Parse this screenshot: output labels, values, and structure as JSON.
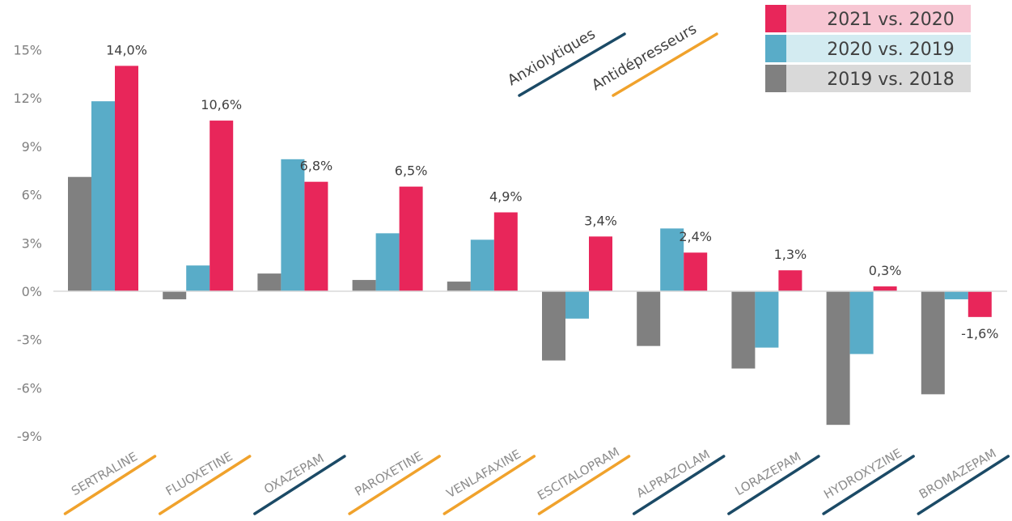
{
  "chart_data": {
    "type": "bar",
    "categories": [
      "SERTRALINE",
      "FLUOXETINE",
      "OXAZEPAM",
      "PAROXETINE",
      "VENLAFAXINE",
      "ESCITALOPRAM",
      "ALPRAZOLAM",
      "LORAZEPAM",
      "HYDROXYZINE",
      "BROMAZEPAM"
    ],
    "category_class": [
      "antidepressant",
      "antidepressant",
      "anxiolytic",
      "antidepressant",
      "antidepressant",
      "antidepressant",
      "anxiolytic",
      "anxiolytic",
      "anxiolytic",
      "anxiolytic"
    ],
    "series": [
      {
        "name": "2019 vs. 2018",
        "color": "#808080",
        "values": [
          7.1,
          -0.5,
          1.1,
          0.7,
          0.6,
          -4.3,
          -3.4,
          -4.8,
          -8.3,
          -6.4
        ]
      },
      {
        "name": "2020 vs. 2019",
        "color": "#59acc8",
        "values": [
          11.8,
          1.6,
          8.2,
          3.6,
          3.2,
          -1.7,
          3.9,
          -3.5,
          -3.9,
          -0.5
        ]
      },
      {
        "name": "2021 vs. 2020",
        "color": "#e8265a",
        "values": [
          14.0,
          10.6,
          6.8,
          6.5,
          4.9,
          3.4,
          2.4,
          1.3,
          0.3,
          -1.6
        ]
      }
    ],
    "data_labels": [
      "14,0%",
      "10,6%",
      "6,8%",
      "6,5%",
      "4,9%",
      "3,4%",
      "2,4%",
      "1,3%",
      "0,3%",
      "-1,6%"
    ],
    "y_ticks": [
      15,
      12,
      9,
      6,
      3,
      0,
      -3,
      -6,
      -9
    ],
    "y_tick_labels": [
      "15%",
      "12%",
      "9%",
      "6%",
      "3%",
      "0%",
      "-3%",
      "-6%",
      "-9%"
    ],
    "ylim": [
      -9,
      15
    ],
    "grid": false,
    "legend": {
      "position": "top-right",
      "entries": [
        {
          "label": "2021 vs. 2020",
          "color": "#e8265a",
          "bg": "#f7c6d3"
        },
        {
          "label": "2020 vs. 2019",
          "color": "#59acc8",
          "bg": "#d3ebf1"
        },
        {
          "label": "2019 vs. 2018",
          "color": "#808080",
          "bg": "#d9d9d9"
        }
      ]
    },
    "class_legend": [
      {
        "key": "anxiolytic",
        "label": "Anxiolytiques",
        "color": "#1b4a66"
      },
      {
        "key": "antidepressant",
        "label": "Antidépresseurs",
        "color": "#f0a22c"
      }
    ]
  }
}
